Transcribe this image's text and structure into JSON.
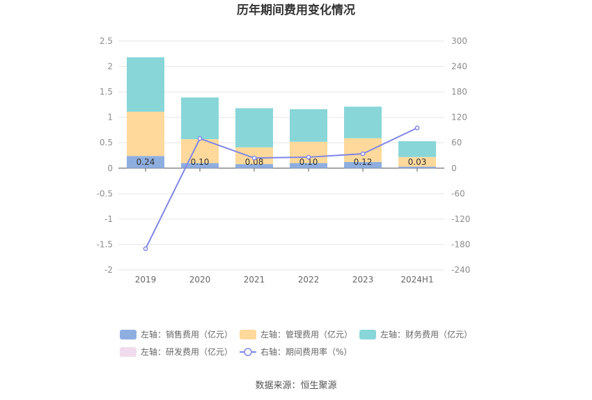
{
  "chart_data": {
    "type": "bar",
    "title": "历年期间费用变化情况",
    "categories": [
      "2019",
      "2020",
      "2021",
      "2022",
      "2023",
      "2024H1"
    ],
    "series": [
      {
        "name": "左轴：销售费用（亿元）",
        "type": "bar",
        "axis": "left",
        "color": "#8eaee0",
        "values": [
          0.24,
          0.1,
          0.08,
          0.1,
          0.12,
          0.03
        ]
      },
      {
        "name": "左轴：管理费用（亿元）",
        "type": "bar",
        "axis": "left",
        "color": "#fed99b",
        "values": [
          0.87,
          0.47,
          0.33,
          0.42,
          0.47,
          0.19
        ]
      },
      {
        "name": "左轴：财务费用（亿元）",
        "type": "bar",
        "axis": "left",
        "color": "#88d6d8",
        "values": [
          1.07,
          0.82,
          0.77,
          0.64,
          0.62,
          0.31
        ]
      },
      {
        "name": "左轴：研发费用（亿元）",
        "type": "bar",
        "axis": "left",
        "color": "#f1dcee",
        "values": [
          0,
          0,
          0,
          0,
          0,
          0
        ]
      },
      {
        "name": "右轴：期间费用率（%）",
        "type": "line",
        "axis": "right",
        "color": "#7f86e6",
        "values": [
          -190,
          70,
          24,
          26,
          34,
          95
        ]
      }
    ],
    "data_labels": [
      "0.24",
      "0.10",
      "0.08",
      "0.10",
      "0.12",
      "0.03"
    ],
    "y_left": {
      "min": -2,
      "max": 2.5,
      "ticks": [
        "2.5",
        "2",
        "1.5",
        "1",
        "0.5",
        "0",
        "-0.5",
        "-1",
        "-1.5",
        "-2"
      ]
    },
    "y_right": {
      "min": -240,
      "max": 300,
      "ticks": [
        "300",
        "240",
        "180",
        "120",
        "60",
        "0",
        "-60",
        "-120",
        "-180",
        "-240"
      ]
    },
    "legend_position": "bottom",
    "grid": true
  },
  "source": "数据来源：恒生聚源"
}
